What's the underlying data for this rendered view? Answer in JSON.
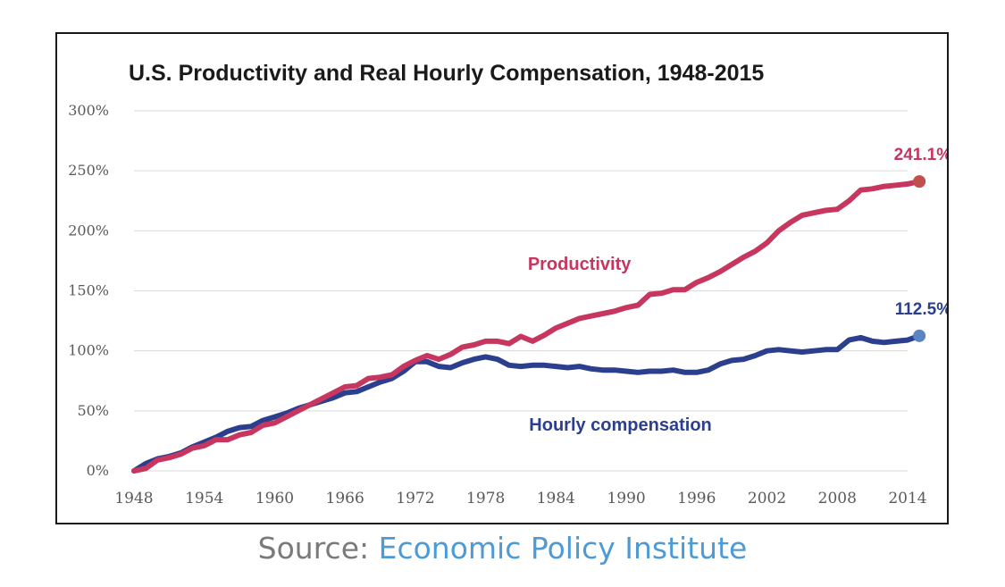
{
  "chart_data": {
    "type": "line",
    "title": "U.S. Productivity and Real Hourly Compensation, 1948-2015",
    "xlabel": "",
    "ylabel": "",
    "xlim": [
      1948,
      2015
    ],
    "ylim": [
      0,
      300
    ],
    "y_ticks": [
      0,
      50,
      100,
      150,
      200,
      250,
      300
    ],
    "y_tick_labels": [
      "0%",
      "50%",
      "100%",
      "150%",
      "200%",
      "250%",
      "300%"
    ],
    "x_ticks": [
      1948,
      1954,
      1960,
      1966,
      1972,
      1978,
      1984,
      1990,
      1996,
      2002,
      2008,
      2014
    ],
    "x_tick_labels": [
      "1948",
      "1954",
      "1960",
      "1966",
      "1972",
      "1978",
      "1984",
      "1990",
      "1996",
      "2002",
      "2008",
      "2014"
    ],
    "grid": true,
    "series": [
      {
        "name": "Productivity",
        "label": "Productivity",
        "color": "#c7365f",
        "end_label": "241.1%",
        "end_marker_color": "#c0504d",
        "x": [
          1948,
          1949,
          1950,
          1951,
          1952,
          1953,
          1954,
          1955,
          1956,
          1957,
          1958,
          1959,
          1960,
          1961,
          1962,
          1963,
          1964,
          1965,
          1966,
          1967,
          1968,
          1969,
          1970,
          1971,
          1972,
          1973,
          1974,
          1975,
          1976,
          1977,
          1978,
          1979,
          1980,
          1981,
          1982,
          1983,
          1984,
          1985,
          1986,
          1987,
          1988,
          1989,
          1990,
          1991,
          1992,
          1993,
          1994,
          1995,
          1996,
          1997,
          1998,
          1999,
          2000,
          2001,
          2002,
          2003,
          2004,
          2005,
          2006,
          2007,
          2008,
          2009,
          2010,
          2011,
          2012,
          2013,
          2014,
          2015
        ],
        "values": [
          0,
          2,
          9,
          11,
          14,
          19,
          21,
          26,
          26,
          30,
          32,
          38,
          40,
          45,
          50,
          55,
          60,
          65,
          70,
          71,
          77,
          78,
          80,
          87,
          92,
          96,
          93,
          97,
          103,
          105,
          108,
          108,
          106,
          112,
          108,
          113,
          119,
          123,
          127,
          129,
          131,
          133,
          136,
          138,
          147,
          148,
          151,
          151,
          157,
          161,
          166,
          172,
          178,
          183,
          190,
          200,
          207,
          213,
          215,
          217,
          218,
          225,
          234,
          235,
          237,
          238,
          239,
          241.1
        ]
      },
      {
        "name": "Hourly compensation",
        "label": "Hourly compensation",
        "color": "#2b3f8e",
        "end_label": "112.5%",
        "end_marker_color": "#5b84c4",
        "x": [
          1948,
          1949,
          1950,
          1951,
          1952,
          1953,
          1954,
          1955,
          1956,
          1957,
          1958,
          1959,
          1960,
          1961,
          1962,
          1963,
          1964,
          1965,
          1966,
          1967,
          1968,
          1969,
          1970,
          1971,
          1972,
          1973,
          1974,
          1975,
          1976,
          1977,
          1978,
          1979,
          1980,
          1981,
          1982,
          1983,
          1984,
          1985,
          1986,
          1987,
          1988,
          1989,
          1990,
          1991,
          1992,
          1993,
          1994,
          1995,
          1996,
          1997,
          1998,
          1999,
          2000,
          2001,
          2002,
          2003,
          2004,
          2005,
          2006,
          2007,
          2008,
          2009,
          2010,
          2011,
          2012,
          2013,
          2014,
          2015
        ],
        "values": [
          0,
          6,
          10,
          12,
          15,
          20,
          24,
          28,
          33,
          36,
          37,
          42,
          45,
          48,
          52,
          55,
          58,
          61,
          65,
          66,
          70,
          74,
          77,
          83,
          91,
          91,
          87,
          86,
          90,
          93,
          95,
          93,
          88,
          87,
          88,
          88,
          87,
          86,
          87,
          85,
          84,
          84,
          83,
          82,
          83,
          83,
          84,
          82,
          82,
          84,
          89,
          92,
          93,
          96,
          100,
          101,
          100,
          99,
          100,
          101,
          101,
          109,
          111,
          108,
          107,
          108,
          109,
          112.5
        ]
      }
    ]
  },
  "source": {
    "label": "Source:",
    "name": "Economic Policy Institute"
  }
}
